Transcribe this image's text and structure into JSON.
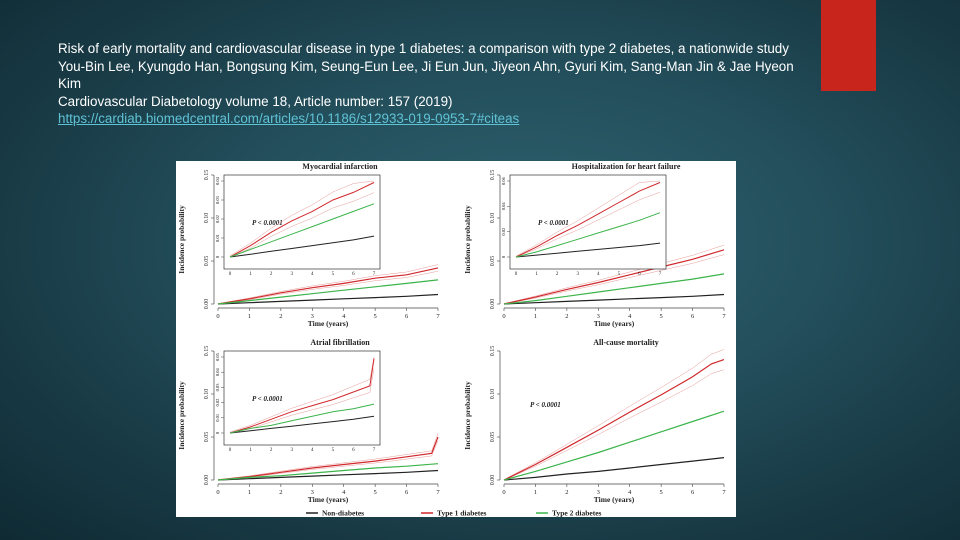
{
  "citation": {
    "title": "Risk of early mortality and cardiovascular disease in type 1 diabetes: a comparison with type 2 diabetes, a nationwide study",
    "authors": "You-Bin Lee, Kyungdo Han, Bongsung Kim, Seung-Eun Lee, Ji Eun Jun, Jiyeon Ahn, Gyuri Kim, Sang-Man Jin & Jae Hyeon Kim",
    "journal": "Cardiovascular Diabetology volume 18, Article number: 157 (2019)",
    "link": "https://cardiab.biomedcentral.com/articles/10.1186/s12933-019-0953-7#citeas"
  },
  "colors": {
    "accent": "#c8251c",
    "non_diabetes": "#222222",
    "type1": "#d0282c",
    "type2": "#3cb44b"
  },
  "legend": [
    {
      "label": "Non-diabetes",
      "color": "#222222"
    },
    {
      "label": "Type 1 diabetes",
      "color": "#d0282c"
    },
    {
      "label": "Type 2 diabetes",
      "color": "#3cb44b"
    }
  ],
  "chart_data": [
    {
      "type": "line",
      "title": "Myocardial infarction",
      "xlabel": "Time (years)",
      "ylabel": "Incidence probability",
      "xlim": [
        0,
        7
      ],
      "ylim": [
        0,
        0.15
      ],
      "xticks": [
        "0",
        "1",
        "2",
        "3",
        "4",
        "5",
        "6",
        "7"
      ],
      "yticks": [
        "0.00",
        "0.05",
        "0.10",
        "0.15"
      ],
      "inset": {
        "annotation": "P < 0.0001",
        "ylim": [
          0,
          0.04
        ],
        "yticks": [
          "0",
          "0.01",
          "0.02",
          "0.03",
          "0.04"
        ],
        "xticks": [
          "0",
          "1",
          "2",
          "3",
          "4",
          "5",
          "6",
          "7"
        ]
      },
      "series": [
        {
          "name": "Non-diabetes",
          "x": [
            0,
            1,
            2,
            3,
            4,
            5,
            6,
            7
          ],
          "values": [
            0,
            0.0015,
            0.003,
            0.0045,
            0.006,
            0.0075,
            0.009,
            0.011
          ]
        },
        {
          "name": "Type 1 diabetes",
          "x": [
            0,
            1,
            2,
            3,
            4,
            5,
            6,
            7
          ],
          "values": [
            0,
            0.006,
            0.013,
            0.019,
            0.024,
            0.03,
            0.034,
            0.042
          ]
        },
        {
          "name": "Type 2 diabetes",
          "x": [
            0,
            1,
            2,
            3,
            4,
            5,
            6,
            7
          ],
          "values": [
            0,
            0.004,
            0.008,
            0.012,
            0.016,
            0.02,
            0.024,
            0.028
          ]
        }
      ]
    },
    {
      "type": "line",
      "title": "Hospitalization for heart failure",
      "xlabel": "Time (years)",
      "ylabel": "Incidence probability",
      "xlim": [
        0,
        7
      ],
      "ylim": [
        0,
        0.15
      ],
      "xticks": [
        "0",
        "1",
        "2",
        "3",
        "4",
        "5",
        "6",
        "7"
      ],
      "yticks": [
        "0.00",
        "0.05",
        "0.10",
        "0.15"
      ],
      "inset": {
        "annotation": "P < 0.0001",
        "ylim": [
          0,
          0.06
        ],
        "yticks": [
          "0",
          "0.02",
          "0.04",
          "0.06"
        ],
        "xticks": [
          "0",
          "1",
          "2",
          "3",
          "4",
          "5",
          "6",
          "7"
        ]
      },
      "series": [
        {
          "name": "Non-diabetes",
          "x": [
            0,
            1,
            2,
            3,
            4,
            5,
            6,
            7
          ],
          "values": [
            0,
            0.0015,
            0.003,
            0.0045,
            0.006,
            0.0075,
            0.009,
            0.011
          ]
        },
        {
          "name": "Type 1 diabetes",
          "x": [
            0,
            1,
            2,
            3,
            4,
            5,
            6,
            7
          ],
          "values": [
            0,
            0.008,
            0.017,
            0.025,
            0.034,
            0.043,
            0.052,
            0.063
          ]
        },
        {
          "name": "Type 2 diabetes",
          "x": [
            0,
            1,
            2,
            3,
            4,
            5,
            6,
            7
          ],
          "values": [
            0,
            0.004,
            0.009,
            0.014,
            0.019,
            0.024,
            0.029,
            0.035
          ]
        }
      ]
    },
    {
      "type": "line",
      "title": "Atrial fibrillation",
      "xlabel": "Time (years)",
      "ylabel": "Incidence probability",
      "xlim": [
        0,
        7
      ],
      "ylim": [
        0,
        0.15
      ],
      "xticks": [
        "0",
        "1",
        "2",
        "3",
        "4",
        "5",
        "6",
        "7"
      ],
      "yticks": [
        "0.00",
        "0.05",
        "0.10",
        "0.15"
      ],
      "inset": {
        "annotation": "P < 0.0001",
        "ylim": [
          0,
          0.05
        ],
        "yticks": [
          "0",
          "0.01",
          "0.02",
          "0.03",
          "0.04",
          "0.05"
        ],
        "xticks": [
          "0",
          "1",
          "2",
          "3",
          "4",
          "5",
          "6",
          "7"
        ]
      },
      "series": [
        {
          "name": "Non-diabetes",
          "x": [
            0,
            1,
            2,
            3,
            4,
            5,
            6,
            7
          ],
          "values": [
            0,
            0.0015,
            0.003,
            0.0045,
            0.006,
            0.0075,
            0.009,
            0.011
          ]
        },
        {
          "name": "Type 1 diabetes",
          "x": [
            0,
            1,
            2,
            3,
            4,
            5,
            6,
            6.8,
            7
          ],
          "values": [
            0,
            0.004,
            0.009,
            0.014,
            0.018,
            0.022,
            0.027,
            0.031,
            0.05
          ]
        },
        {
          "name": "Type 2 diabetes",
          "x": [
            0,
            1,
            2,
            3,
            4,
            5,
            6,
            7
          ],
          "values": [
            0,
            0.003,
            0.005,
            0.008,
            0.011,
            0.014,
            0.016,
            0.019
          ]
        }
      ]
    },
    {
      "type": "line",
      "title": "All-cause mortality",
      "xlabel": "Time (years)",
      "ylabel": "Incidence probability",
      "xlim": [
        0,
        7
      ],
      "ylim": [
        0,
        0.15
      ],
      "xticks": [
        "0",
        "1",
        "2",
        "3",
        "4",
        "5",
        "6",
        "7"
      ],
      "yticks": [
        "0.00",
        "0.05",
        "0.10",
        "0.15"
      ],
      "annotation": "P < 0.0001",
      "series": [
        {
          "name": "Non-diabetes",
          "x": [
            0,
            1,
            2,
            3,
            4,
            5,
            6,
            7
          ],
          "values": [
            0,
            0.003,
            0.007,
            0.01,
            0.014,
            0.018,
            0.022,
            0.026
          ]
        },
        {
          "name": "Type 1 diabetes",
          "x": [
            0,
            1,
            2,
            3,
            4,
            5,
            6,
            6.6,
            7
          ],
          "values": [
            0,
            0.018,
            0.038,
            0.058,
            0.079,
            0.099,
            0.12,
            0.135,
            0.14
          ]
        },
        {
          "name": "Type 2 diabetes",
          "x": [
            0,
            1,
            2,
            3,
            4,
            5,
            6,
            7
          ],
          "values": [
            0,
            0.01,
            0.021,
            0.032,
            0.044,
            0.056,
            0.068,
            0.08
          ]
        }
      ]
    }
  ]
}
